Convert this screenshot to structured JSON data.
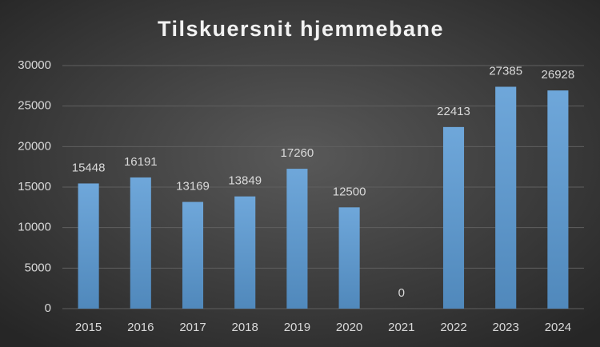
{
  "chart_data": {
    "type": "bar",
    "title": "Tilskuersnit hjemmebane",
    "categories": [
      "2015",
      "2016",
      "2017",
      "2018",
      "2019",
      "2020",
      "2021",
      "2022",
      "2023",
      "2024"
    ],
    "values": [
      15448,
      16191,
      13169,
      13849,
      17260,
      12500,
      0,
      22413,
      27385,
      26928
    ],
    "color": "#5b9bd5",
    "ylim": [
      0,
      30000
    ],
    "yticks": [
      0,
      5000,
      10000,
      15000,
      20000,
      25000,
      30000
    ],
    "grid": true
  }
}
